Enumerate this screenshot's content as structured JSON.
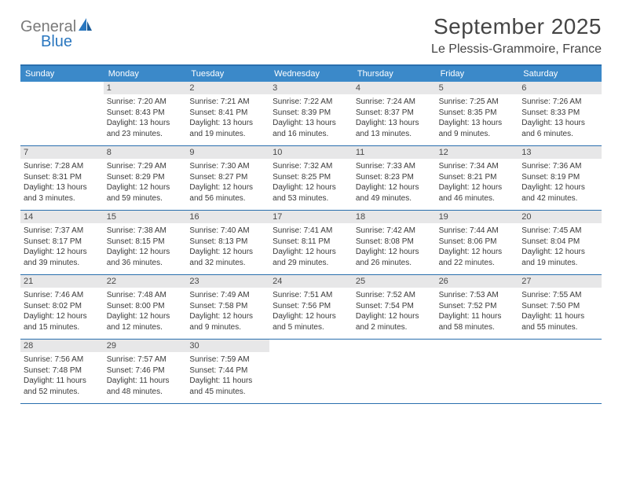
{
  "logo": {
    "text1": "General",
    "text2": "Blue"
  },
  "title": "September 2025",
  "subtitle": "Le Plessis-Grammoire, France",
  "colors": {
    "header_bg": "#3b89c9",
    "header_border": "#2a6fae",
    "day_header_bg": "#e7e7e8",
    "logo_gray": "#7a7a7a",
    "logo_blue": "#2a77bf"
  },
  "weekdays": [
    "Sunday",
    "Monday",
    "Tuesday",
    "Wednesday",
    "Thursday",
    "Friday",
    "Saturday"
  ],
  "start_offset": 1,
  "days": [
    {
      "n": 1,
      "sunrise": "7:20 AM",
      "sunset": "8:43 PM",
      "daylight": "13 hours and 23 minutes."
    },
    {
      "n": 2,
      "sunrise": "7:21 AM",
      "sunset": "8:41 PM",
      "daylight": "13 hours and 19 minutes."
    },
    {
      "n": 3,
      "sunrise": "7:22 AM",
      "sunset": "8:39 PM",
      "daylight": "13 hours and 16 minutes."
    },
    {
      "n": 4,
      "sunrise": "7:24 AM",
      "sunset": "8:37 PM",
      "daylight": "13 hours and 13 minutes."
    },
    {
      "n": 5,
      "sunrise": "7:25 AM",
      "sunset": "8:35 PM",
      "daylight": "13 hours and 9 minutes."
    },
    {
      "n": 6,
      "sunrise": "7:26 AM",
      "sunset": "8:33 PM",
      "daylight": "13 hours and 6 minutes."
    },
    {
      "n": 7,
      "sunrise": "7:28 AM",
      "sunset": "8:31 PM",
      "daylight": "13 hours and 3 minutes."
    },
    {
      "n": 8,
      "sunrise": "7:29 AM",
      "sunset": "8:29 PM",
      "daylight": "12 hours and 59 minutes."
    },
    {
      "n": 9,
      "sunrise": "7:30 AM",
      "sunset": "8:27 PM",
      "daylight": "12 hours and 56 minutes."
    },
    {
      "n": 10,
      "sunrise": "7:32 AM",
      "sunset": "8:25 PM",
      "daylight": "12 hours and 53 minutes."
    },
    {
      "n": 11,
      "sunrise": "7:33 AM",
      "sunset": "8:23 PM",
      "daylight": "12 hours and 49 minutes."
    },
    {
      "n": 12,
      "sunrise": "7:34 AM",
      "sunset": "8:21 PM",
      "daylight": "12 hours and 46 minutes."
    },
    {
      "n": 13,
      "sunrise": "7:36 AM",
      "sunset": "8:19 PM",
      "daylight": "12 hours and 42 minutes."
    },
    {
      "n": 14,
      "sunrise": "7:37 AM",
      "sunset": "8:17 PM",
      "daylight": "12 hours and 39 minutes."
    },
    {
      "n": 15,
      "sunrise": "7:38 AM",
      "sunset": "8:15 PM",
      "daylight": "12 hours and 36 minutes."
    },
    {
      "n": 16,
      "sunrise": "7:40 AM",
      "sunset": "8:13 PM",
      "daylight": "12 hours and 32 minutes."
    },
    {
      "n": 17,
      "sunrise": "7:41 AM",
      "sunset": "8:11 PM",
      "daylight": "12 hours and 29 minutes."
    },
    {
      "n": 18,
      "sunrise": "7:42 AM",
      "sunset": "8:08 PM",
      "daylight": "12 hours and 26 minutes."
    },
    {
      "n": 19,
      "sunrise": "7:44 AM",
      "sunset": "8:06 PM",
      "daylight": "12 hours and 22 minutes."
    },
    {
      "n": 20,
      "sunrise": "7:45 AM",
      "sunset": "8:04 PM",
      "daylight": "12 hours and 19 minutes."
    },
    {
      "n": 21,
      "sunrise": "7:46 AM",
      "sunset": "8:02 PM",
      "daylight": "12 hours and 15 minutes."
    },
    {
      "n": 22,
      "sunrise": "7:48 AM",
      "sunset": "8:00 PM",
      "daylight": "12 hours and 12 minutes."
    },
    {
      "n": 23,
      "sunrise": "7:49 AM",
      "sunset": "7:58 PM",
      "daylight": "12 hours and 9 minutes."
    },
    {
      "n": 24,
      "sunrise": "7:51 AM",
      "sunset": "7:56 PM",
      "daylight": "12 hours and 5 minutes."
    },
    {
      "n": 25,
      "sunrise": "7:52 AM",
      "sunset": "7:54 PM",
      "daylight": "12 hours and 2 minutes."
    },
    {
      "n": 26,
      "sunrise": "7:53 AM",
      "sunset": "7:52 PM",
      "daylight": "11 hours and 58 minutes."
    },
    {
      "n": 27,
      "sunrise": "7:55 AM",
      "sunset": "7:50 PM",
      "daylight": "11 hours and 55 minutes."
    },
    {
      "n": 28,
      "sunrise": "7:56 AM",
      "sunset": "7:48 PM",
      "daylight": "11 hours and 52 minutes."
    },
    {
      "n": 29,
      "sunrise": "7:57 AM",
      "sunset": "7:46 PM",
      "daylight": "11 hours and 48 minutes."
    },
    {
      "n": 30,
      "sunrise": "7:59 AM",
      "sunset": "7:44 PM",
      "daylight": "11 hours and 45 minutes."
    }
  ],
  "labels": {
    "sunrise": "Sunrise:",
    "sunset": "Sunset:",
    "daylight": "Daylight:"
  }
}
